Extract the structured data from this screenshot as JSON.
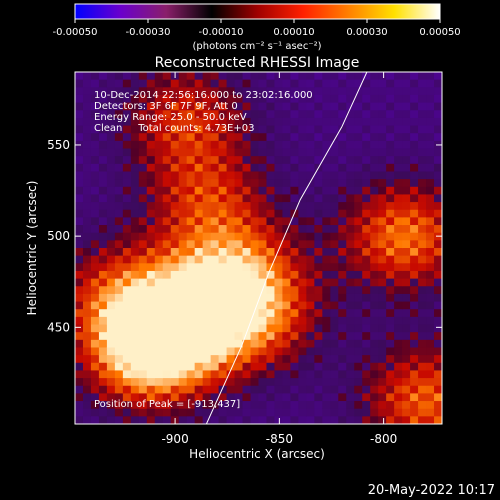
{
  "chart_data": {
    "type": "heatmap",
    "title": "Reconstructed RHESSI Image",
    "xlabel": "Heliocentric X (arcsec)",
    "ylabel": "Heliocentric Y (arcsec)",
    "x_ticks": [
      -900,
      -850,
      -800
    ],
    "y_ticks": [
      450,
      500,
      550
    ],
    "xlim": [
      -948,
      -772
    ],
    "ylim": [
      397,
      590
    ],
    "colorbar": {
      "ticks": [
        "-0.00050",
        "-0.00030",
        "-0.00010",
        "0.00010",
        "0.00030",
        "0.00050"
      ],
      "range": [
        -0.0005,
        0.0005
      ],
      "unit_label": "(photons cm⁻² s⁻¹ asec⁻²)",
      "colors": [
        "#0000ff",
        "#6a00cc",
        "#8a1f6a",
        "#000000",
        "#a00000",
        "#ff2000",
        "#ff8000",
        "#ffe000",
        "#ffffff"
      ]
    },
    "annotations": [
      "10-Dec-2014 22:56:16.000 to 23:02:16.000",
      "Detectors: 3F 6F 7F 9F, Att 0",
      "Energy Range: 25.0 - 50.0 keV",
      "Clean     Total counts: 4.73E+03"
    ],
    "peak_label": "Position of Peak = [-913,437]",
    "peak_position": [
      -913,
      437
    ],
    "sources": [
      {
        "x": -913,
        "y": 437,
        "intensity": 1.0
      },
      {
        "x": -895,
        "y": 455,
        "intensity": 0.75
      },
      {
        "x": -870,
        "y": 480,
        "intensity": 0.6
      },
      {
        "x": -885,
        "y": 520,
        "intensity": 0.5
      },
      {
        "x": -895,
        "y": 565,
        "intensity": 0.55
      },
      {
        "x": -860,
        "y": 455,
        "intensity": 0.55
      },
      {
        "x": -790,
        "y": 500,
        "intensity": 0.75
      },
      {
        "x": -780,
        "y": 410,
        "intensity": 0.7
      },
      {
        "x": -930,
        "y": 470,
        "intensity": 0.45
      }
    ],
    "limb_curve": [
      [
        -885,
        397
      ],
      [
        -868,
        440
      ],
      [
        -855,
        480
      ],
      [
        -840,
        520
      ],
      [
        -820,
        560
      ],
      [
        -808,
        590
      ]
    ],
    "grid": false
  },
  "footer": {
    "date": "20-May-2022 10:17"
  }
}
